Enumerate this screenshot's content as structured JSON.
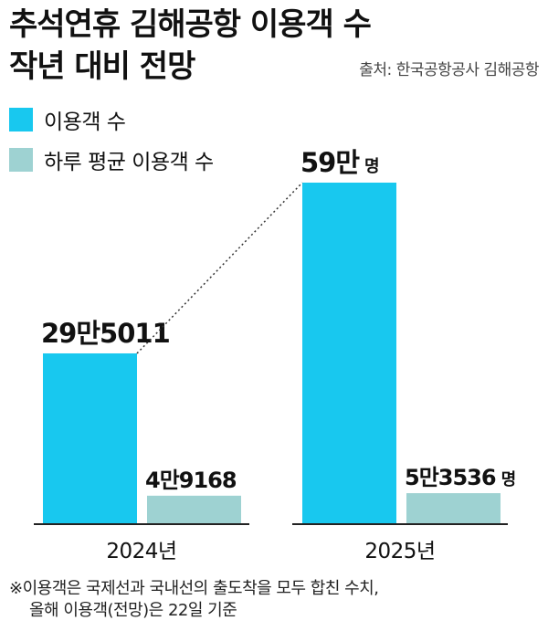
{
  "title_lines": [
    "추석연휴 김해공항 이용객 수",
    "작년 대비 전망"
  ],
  "source": "출처: 한국공항공사 김해공항",
  "colors": {
    "passengers": "#18C8EF",
    "daily_avg": "#9ED2D2",
    "text": "#111111",
    "axis": "#222222"
  },
  "legend": [
    {
      "label": "이용객 수",
      "color": "#18C8EF"
    },
    {
      "label": "하루 평균 이용객 수",
      "color": "#9ED2D2"
    }
  ],
  "chart_data": {
    "type": "bar",
    "categories": [
      "2024년",
      "2025년"
    ],
    "series": [
      {
        "name": "이용객 수",
        "values": [
          295011,
          590000
        ],
        "labels": [
          "29만5011",
          "59만"
        ],
        "units": [
          "",
          "명"
        ]
      },
      {
        "name": "하루 평균 이용객 수",
        "values": [
          49168,
          53536
        ],
        "labels": [
          "4만9168",
          "5만3536"
        ],
        "units": [
          "",
          "명"
        ]
      }
    ],
    "connector": "dotted line between 이용객 수 bars",
    "grid": false
  },
  "footnote": [
    "※이용객은 국제선과 국내선의 출도착을 모두 합친 수치,",
    "올해 이용객(전망)은 22일 기준"
  ]
}
